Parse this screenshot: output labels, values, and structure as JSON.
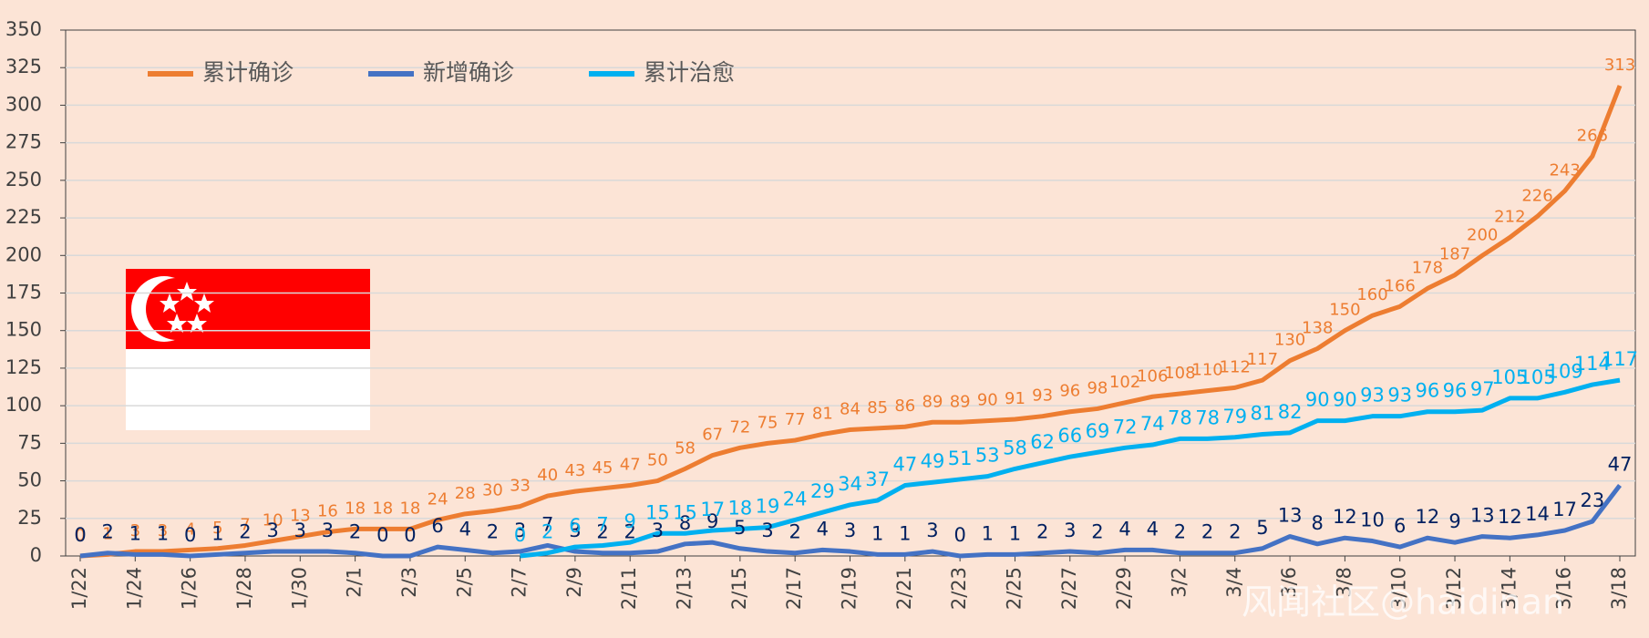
{
  "chart_data": {
    "type": "line",
    "categories": [
      "1/22",
      null,
      "1/24",
      null,
      "1/26",
      null,
      "1/28",
      null,
      "1/30",
      null,
      "2/1",
      null,
      "2/3",
      null,
      "2/5",
      null,
      "2/7",
      null,
      "2/9",
      null,
      "2/11",
      null,
      "2/13",
      null,
      "2/15",
      null,
      "2/17",
      null,
      "2/19",
      null,
      "2/21",
      null,
      "2/23",
      null,
      "2/25",
      null,
      "2/27",
      null,
      "2/29",
      null,
      "3/2",
      null,
      "3/4",
      null,
      "3/6",
      null,
      "3/8",
      null,
      "3/10",
      null,
      "3/12",
      null,
      "3/14",
      null,
      "3/16",
      null,
      "3/18"
    ],
    "series": [
      {
        "name": "累计确诊",
        "color": "#ed7d31",
        "label_color": "#ed7d31",
        "values": [
          0,
          1,
          3,
          3,
          4,
          5,
          7,
          10,
          13,
          16,
          18,
          18,
          18,
          24,
          28,
          30,
          33,
          40,
          43,
          45,
          47,
          50,
          58,
          67,
          72,
          75,
          77,
          81,
          84,
          85,
          86,
          89,
          89,
          90,
          91,
          93,
          96,
          98,
          102,
          106,
          108,
          110,
          112,
          117,
          130,
          138,
          150,
          160,
          166,
          178,
          187,
          200,
          212,
          226,
          243,
          266,
          313
        ]
      },
      {
        "name": "新增确诊",
        "color": "#4472c4",
        "label_color": "#002060",
        "values": [
          0,
          2,
          1,
          1,
          0,
          1,
          2,
          3,
          3,
          3,
          2,
          0,
          0,
          6,
          4,
          2,
          3,
          7,
          3,
          2,
          2,
          3,
          8,
          9,
          5,
          3,
          2,
          4,
          3,
          1,
          1,
          3,
          0,
          1,
          1,
          2,
          3,
          2,
          4,
          4,
          2,
          2,
          2,
          5,
          13,
          8,
          12,
          10,
          6,
          12,
          9,
          13,
          12,
          14,
          17,
          23,
          47
        ]
      },
      {
        "name": "累计治愈",
        "color": "#00b0f0",
        "label_color": "#00b0f0",
        "values": [
          null,
          null,
          null,
          null,
          null,
          null,
          null,
          null,
          null,
          null,
          null,
          null,
          null,
          null,
          null,
          null,
          0,
          2,
          6,
          7,
          9,
          15,
          15,
          17,
          18,
          19,
          24,
          29,
          34,
          37,
          47,
          49,
          51,
          53,
          58,
          62,
          66,
          69,
          72,
          74,
          78,
          78,
          79,
          81,
          82,
          90,
          90,
          93,
          93,
          96,
          96,
          97,
          105,
          105,
          109,
          114,
          117
        ]
      }
    ],
    "ylim": [
      0,
      350
    ],
    "yticks": [
      0,
      25,
      50,
      75,
      100,
      125,
      150,
      175,
      200,
      225,
      250,
      275,
      300,
      325,
      350
    ],
    "grid": true,
    "legend": "top-left",
    "annotation": "风闻社区@haidinan"
  }
}
